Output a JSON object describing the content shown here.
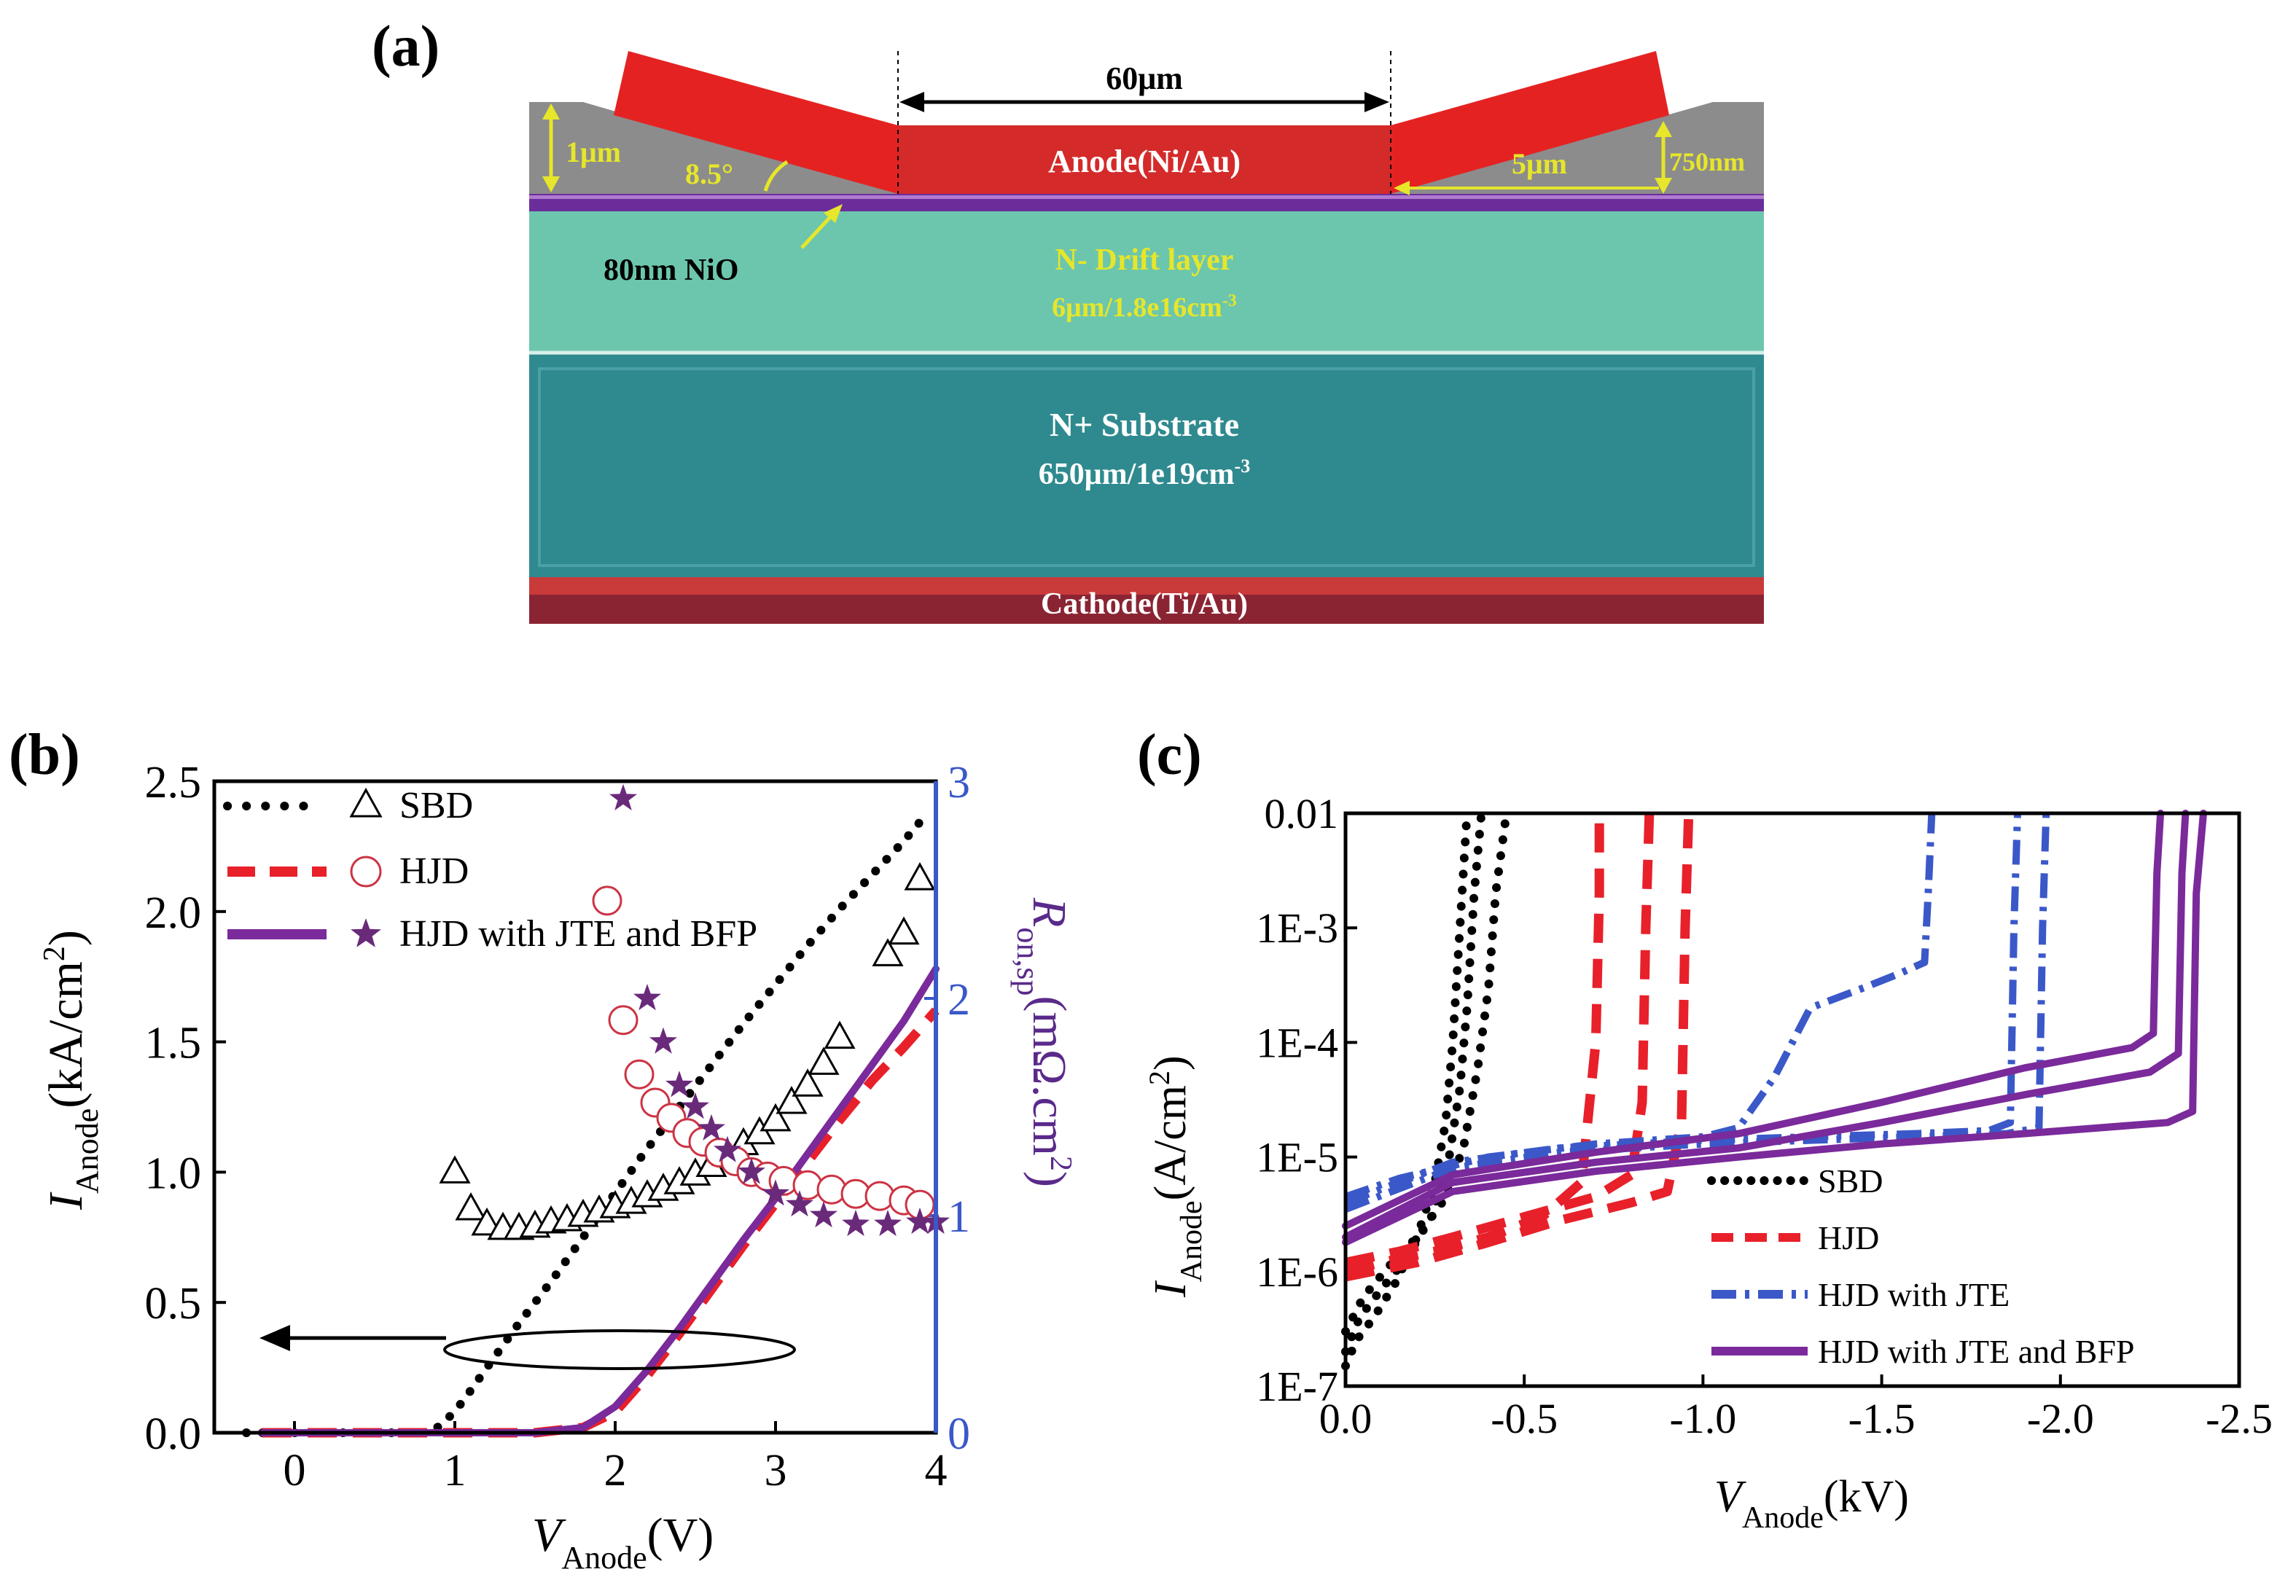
{
  "panels": {
    "a": {
      "label": "(a)",
      "dimensions": {
        "width": "60μm",
        "height_left": "1μm",
        "angle": "8.5°",
        "width_right": "5μm",
        "height_right": "750nm"
      },
      "layers": {
        "nio": "80nm  NiO",
        "anode": "Anode(Ni/Au)",
        "drift_title": "N- Drift layer",
        "drift_spec": "6μm/1.8e16cm",
        "drift_exp": "-3",
        "substrate_title": "N+ Substrate",
        "substrate_spec": "650μm/1e19cm",
        "substrate_exp": "-3",
        "cathode": "Cathode(Ti/Au)"
      }
    },
    "b": {
      "label": "(b)"
    },
    "c": {
      "label": "(c)"
    }
  },
  "colors": {
    "sbd": "#000000",
    "hjd": "#e8202a",
    "hjd_markers": "#cc3344",
    "jte": "#3a58c8",
    "bfp": "#7a2a9a",
    "bfp_markers": "#6a2a7a",
    "right_axis": "#3a58c8",
    "passivation": "#8c8c8c",
    "anode_red": "#e52222",
    "drift_teal": "#6cc6ad",
    "substrate_teal": "#2f8a8f",
    "nio_purple": "#6b2d9a",
    "cathode_red": "#c93a3a",
    "cathode_dark": "#8a2433",
    "dimension_yellow": "#e6e62a"
  },
  "chart_data": [
    {
      "panel": "(b)",
      "type": "line",
      "xlabel": "V",
      "xlabel_sub": "Anode",
      "xlabel_unit": "(V)",
      "ylabel": "I",
      "ylabel_sub": "Anode",
      "ylabel_unit": "(kA/cm",
      "ylabel_unit_sup": "2",
      "ylabel_unit_close": ")",
      "ylabel_right": "R",
      "ylabel_right_sub": "on,sp",
      "ylabel_right_unit": "(mΩ.cm",
      "ylabel_right_unit_sup": "2",
      "ylabel_right_unit_close": ")",
      "xlim": [
        -0.5,
        4
      ],
      "ylim": [
        0,
        2.5
      ],
      "ylim_right": [
        0,
        3
      ],
      "xticks": [
        "0",
        "1",
        "2",
        "3",
        "4"
      ],
      "yticks": [
        "0.0",
        "0.5",
        "1.0",
        "1.5",
        "2.0",
        "2.5"
      ],
      "yticks_right": [
        "0",
        "1",
        "2",
        "3"
      ],
      "legend": [
        "SBD",
        "HJD",
        "HJD with  JTE and BFP"
      ],
      "legend_position": "top-left",
      "iv_series": [
        {
          "name": "SBD",
          "style": "dotted",
          "color": "#000000",
          "x": [
            -0.3,
            0.2,
            0.6,
            0.85,
            0.95,
            1.05,
            1.2,
            1.4,
            1.6,
            1.8,
            2.0,
            2.2,
            2.4,
            2.6,
            2.8,
            3.0,
            3.2,
            3.4,
            3.6,
            3.8,
            3.95
          ],
          "y": [
            0.0,
            0.0,
            0.0,
            0.0,
            0.05,
            0.12,
            0.25,
            0.42,
            0.58,
            0.75,
            0.92,
            1.09,
            1.25,
            1.41,
            1.57,
            1.72,
            1.87,
            2.01,
            2.14,
            2.27,
            2.38
          ]
        },
        {
          "name": "HJD",
          "style": "dashed",
          "color": "#e8202a",
          "x": [
            -0.2,
            0.5,
            1.0,
            1.5,
            1.8,
            2.0,
            2.2,
            2.4,
            2.6,
            2.8,
            3.0,
            3.2,
            3.4,
            3.6,
            3.8,
            4.0
          ],
          "y": [
            0.0,
            0.0,
            0.0,
            0.0,
            0.02,
            0.08,
            0.22,
            0.38,
            0.55,
            0.72,
            0.88,
            1.04,
            1.2,
            1.35,
            1.48,
            1.62
          ]
        },
        {
          "name": "HJD with  JTE and BFP",
          "style": "solid",
          "color": "#7a2a9a",
          "x": [
            -0.2,
            0.5,
            1.0,
            1.5,
            1.8,
            2.0,
            2.2,
            2.4,
            2.6,
            2.8,
            3.0,
            3.2,
            3.4,
            3.6,
            3.8,
            4.0
          ],
          "y": [
            0.0,
            0.0,
            0.0,
            0.0,
            0.02,
            0.1,
            0.24,
            0.4,
            0.57,
            0.74,
            0.9,
            1.07,
            1.24,
            1.41,
            1.58,
            1.78
          ]
        }
      ],
      "ron_series": [
        {
          "name": "SBD",
          "marker": "triangle-open",
          "color": "#000000",
          "x": [
            1.0,
            1.1,
            1.2,
            1.3,
            1.4,
            1.5,
            1.6,
            1.7,
            1.8,
            1.9,
            2.0,
            2.1,
            2.2,
            2.3,
            2.4,
            2.5,
            2.6,
            2.7,
            2.8,
            2.9,
            3.0,
            3.1,
            3.2,
            3.3,
            3.4,
            3.7,
            3.8,
            3.9
          ],
          "y": [
            1.2,
            1.03,
            0.96,
            0.94,
            0.94,
            0.95,
            0.97,
            0.98,
            1.0,
            1.02,
            1.04,
            1.06,
            1.09,
            1.12,
            1.15,
            1.19,
            1.23,
            1.28,
            1.33,
            1.38,
            1.44,
            1.52,
            1.6,
            1.7,
            1.82,
            2.2,
            2.3,
            2.55
          ]
        },
        {
          "name": "HJD",
          "marker": "circle-open",
          "color": "#cc3344",
          "x": [
            1.95,
            2.05,
            2.15,
            2.25,
            2.35,
            2.45,
            2.55,
            2.65,
            2.75,
            2.85,
            2.95,
            3.05,
            3.2,
            3.35,
            3.5,
            3.65,
            3.8,
            3.9
          ],
          "y": [
            2.45,
            1.9,
            1.65,
            1.52,
            1.45,
            1.38,
            1.34,
            1.29,
            1.25,
            1.2,
            1.18,
            1.16,
            1.14,
            1.12,
            1.1,
            1.09,
            1.07,
            1.05
          ]
        },
        {
          "name": "HJD with  JTE and BFP",
          "marker": "star",
          "color": "#6a2a7a",
          "x": [
            2.05,
            2.2,
            2.3,
            2.4,
            2.5,
            2.6,
            2.7,
            2.85,
            3.0,
            3.15,
            3.3,
            3.5,
            3.7,
            3.9,
            4.0
          ],
          "y": [
            2.92,
            2.0,
            1.8,
            1.6,
            1.5,
            1.4,
            1.3,
            1.2,
            1.1,
            1.05,
            1.0,
            0.96,
            0.96,
            0.97,
            0.97
          ]
        }
      ]
    },
    {
      "panel": "(c)",
      "type": "line",
      "xlabel": "V",
      "xlabel_sub": "Anode",
      "xlabel_unit": "(kV)",
      "ylabel": "I",
      "ylabel_sub": "Anode",
      "ylabel_unit": "(A/cm",
      "ylabel_unit_sup": "2",
      "ylabel_unit_close": ")",
      "yscale": "log",
      "xlim": [
        0,
        -2.5
      ],
      "ylim": [
        1e-07,
        0.01
      ],
      "xticks": [
        "0.0",
        "-0.5",
        "-1.0",
        "-1.5",
        "-2.0",
        "-2.5"
      ],
      "yticks": [
        "1E-7",
        "1E-6",
        "1E-5",
        "1E-4",
        "1E-3",
        "0.01"
      ],
      "legend": [
        "SBD",
        "HJD",
        "HJD with JTE",
        "HJD with JTE and BFP"
      ],
      "legend_position": "bottom-right",
      "series": [
        {
          "name": "SBD",
          "style": "dotted",
          "color": "#000000",
          "curves": [
            {
              "x": [
                0,
                -0.03,
                -0.08,
                -0.14,
                -0.2,
                -0.25,
                -0.28,
                -0.3,
                -0.32,
                -0.34
              ],
              "y": [
                1.5e-07,
                2.5e-07,
                4e-07,
                8e-07,
                2e-06,
                6e-06,
                2e-05,
                0.0001,
                0.001,
                0.01
              ]
            },
            {
              "x": [
                0,
                -0.04,
                -0.1,
                -0.17,
                -0.24,
                -0.29,
                -0.32,
                -0.34,
                -0.36,
                -0.38
              ],
              "y": [
                2e-07,
                4e-07,
                7e-07,
                1.3e-06,
                3e-06,
                1e-05,
                4e-05,
                0.0002,
                0.002,
                0.01
              ]
            },
            {
              "x": [
                0,
                -0.05,
                -0.12,
                -0.2,
                -0.27,
                -0.33,
                -0.37,
                -0.4,
                -0.42,
                -0.45
              ],
              "y": [
                3e-07,
                6e-07,
                1.1e-06,
                2e-06,
                4e-06,
                1.2e-05,
                6e-05,
                0.0003,
                0.002,
                0.01
              ]
            }
          ]
        },
        {
          "name": "HJD",
          "style": "dashed",
          "color": "#e8202a",
          "curves": [
            {
              "x": [
                0,
                -0.1,
                -0.25,
                -0.4,
                -0.55,
                -0.66,
                -0.7,
                -0.71,
                -0.71
              ],
              "y": [
                1e-06,
                1.2e-06,
                1.5e-06,
                2e-06,
                3e-06,
                6e-06,
                0.0001,
                0.002,
                0.01
              ]
            },
            {
              "x": [
                0,
                -0.15,
                -0.3,
                -0.5,
                -0.7,
                -0.8,
                -0.83,
                -0.84,
                -0.85
              ],
              "y": [
                1.2e-06,
                1.5e-06,
                2e-06,
                3e-06,
                4.5e-06,
                7e-06,
                3e-05,
                0.001,
                0.01
              ]
            },
            {
              "x": [
                0,
                -0.2,
                -0.4,
                -0.6,
                -0.8,
                -0.9,
                -0.94,
                -0.95,
                -0.96
              ],
              "y": [
                9e-07,
                1.2e-06,
                1.8e-06,
                2.8e-06,
                4e-06,
                5e-06,
                2e-05,
                0.001,
                0.01
              ]
            }
          ]
        },
        {
          "name": "HJD with JTE",
          "style": "dash-dot",
          "color": "#3a58c8",
          "curves": [
            {
              "x": [
                0,
                -0.15,
                -0.4,
                -0.7,
                -1.0,
                -1.1,
                -1.2,
                -1.3,
                -1.45,
                -1.55,
                -1.62,
                -1.63,
                -1.64
              ],
              "y": [
                4.5e-06,
                6.5e-06,
                1e-05,
                1.3e-05,
                1.5e-05,
                1.8e-05,
                5e-05,
                0.0002,
                0.0003,
                0.0004,
                0.0005,
                0.002,
                0.01
              ]
            },
            {
              "x": [
                0,
                -0.3,
                -0.6,
                -1.0,
                -1.3,
                -1.6,
                -1.8,
                -1.86,
                -1.87,
                -1.88
              ],
              "y": [
                4e-06,
                9e-06,
                1.2e-05,
                1.4e-05,
                1.5e-05,
                1.6e-05,
                1.7e-05,
                2e-05,
                0.001,
                0.01
              ]
            },
            {
              "x": [
                0,
                -0.3,
                -0.6,
                -1.0,
                -1.3,
                -1.6,
                -1.85,
                -1.94,
                -1.95,
                -1.96
              ],
              "y": [
                3.5e-06,
                8e-06,
                1.1e-05,
                1.3e-05,
                1.4e-05,
                1.5e-05,
                1.6e-05,
                1.8e-05,
                0.001,
                0.01
              ]
            }
          ]
        },
        {
          "name": "HJD with JTE and BFP",
          "style": "solid",
          "color": "#7a2a9a",
          "curves": [
            {
              "x": [
                0,
                -0.3,
                -0.7,
                -1.1,
                -1.5,
                -1.9,
                -2.2,
                -2.26,
                -2.27,
                -2.28
              ],
              "y": [
                2.5e-06,
                7e-06,
                1.1e-05,
                1.6e-05,
                3e-05,
                6e-05,
                9e-05,
                0.00012,
                0.003,
                0.01
              ]
            },
            {
              "x": [
                0,
                -0.3,
                -0.7,
                -1.1,
                -1.5,
                -1.9,
                -2.25,
                -2.33,
                -2.34,
                -2.35
              ],
              "y": [
                2e-06,
                6e-06,
                9e-06,
                1.2e-05,
                2e-05,
                3.5e-05,
                5.5e-05,
                8e-05,
                0.003,
                0.01
              ]
            },
            {
              "x": [
                0,
                -0.3,
                -0.7,
                -1.1,
                -1.5,
                -1.9,
                -2.3,
                -2.37,
                -2.38,
                -2.4
              ],
              "y": [
                1.8e-06,
                5e-06,
                7.5e-06,
                1e-05,
                1.3e-05,
                1.6e-05,
                2e-05,
                2.5e-05,
                0.002,
                0.01
              ]
            }
          ]
        }
      ]
    }
  ]
}
